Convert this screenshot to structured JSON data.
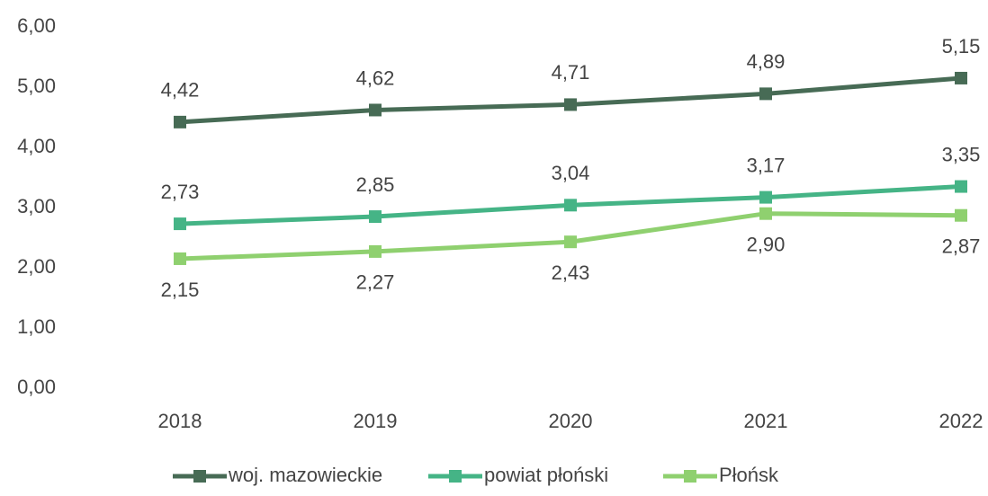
{
  "chart_data": {
    "type": "line",
    "categories": [
      "2018",
      "2019",
      "2020",
      "2021",
      "2022"
    ],
    "series": [
      {
        "name": "woj. mazowieckie",
        "color": "#476b55",
        "values": [
          4.42,
          4.62,
          4.71,
          4.89,
          5.15
        ],
        "value_labels": [
          "4,42",
          "4,62",
          "4,71",
          "4,89",
          "5,15"
        ]
      },
      {
        "name": "powiat płoński",
        "color": "#45b486",
        "values": [
          2.73,
          2.85,
          3.04,
          3.17,
          3.35
        ],
        "value_labels": [
          "2,73",
          "2,85",
          "3,04",
          "3,17",
          "3,35"
        ]
      },
      {
        "name": "Płońsk",
        "color": "#8fd06f",
        "values": [
          2.15,
          2.27,
          2.43,
          2.9,
          2.87
        ],
        "value_labels": [
          "2,15",
          "2,27",
          "2,43",
          "2,90",
          "2,87"
        ]
      }
    ],
    "ylim": [
      0,
      6
    ],
    "yticks": [
      {
        "value": 0,
        "label": "0,00"
      },
      {
        "value": 1,
        "label": "1,00"
      },
      {
        "value": 2,
        "label": "2,00"
      },
      {
        "value": 3,
        "label": "3,00"
      },
      {
        "value": 4,
        "label": "4,00"
      },
      {
        "value": 5,
        "label": "5,00"
      },
      {
        "value": 6,
        "label": "6,00"
      }
    ],
    "grid": false,
    "legend": "bottom"
  }
}
